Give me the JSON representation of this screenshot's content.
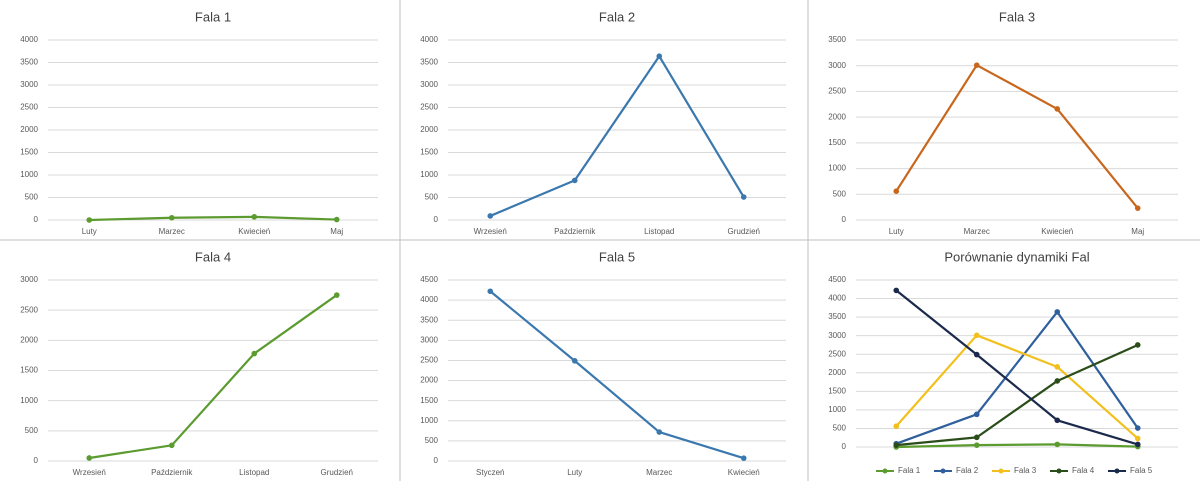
{
  "chart_data": [
    {
      "type": "line",
      "title": "Fala 1",
      "categories": [
        "Luty",
        "Marzec",
        "Kwiecień",
        "Maj"
      ],
      "values": [
        0,
        50,
        70,
        10
      ],
      "color": "#5b9b2f",
      "ylim": [
        0,
        4000
      ],
      "yticks": [
        0,
        500,
        1000,
        1500,
        2000,
        2500,
        3000,
        3500,
        4000
      ],
      "grid": true
    },
    {
      "type": "line",
      "title": "Fala 2",
      "categories": [
        "Wrzesień",
        "Październik",
        "Listopad",
        "Grudzień"
      ],
      "values": [
        90,
        880,
        3640,
        510
      ],
      "color": "#3a78ae",
      "ylim": [
        0,
        4000
      ],
      "yticks": [
        0,
        500,
        1000,
        1500,
        2000,
        2500,
        3000,
        3500,
        4000
      ],
      "grid": true
    },
    {
      "type": "line",
      "title": "Fala 3",
      "categories": [
        "Luty",
        "Marzec",
        "Kwiecień",
        "Maj"
      ],
      "values": [
        560,
        3010,
        2160,
        230
      ],
      "color": "#c8661c",
      "ylim": [
        0,
        3500
      ],
      "yticks": [
        0,
        500,
        1000,
        1500,
        2000,
        2500,
        3000,
        3500
      ],
      "grid": true
    },
    {
      "type": "line",
      "title": "Fala 4",
      "categories": [
        "Wrzesień",
        "Październik",
        "Listopad",
        "Grudzień"
      ],
      "values": [
        50,
        260,
        1780,
        2750
      ],
      "color": "#5b9b2f",
      "ylim": [
        0,
        3000
      ],
      "yticks": [
        0,
        500,
        1000,
        1500,
        2000,
        2500,
        3000
      ],
      "grid": true
    },
    {
      "type": "line",
      "title": "Fala 5",
      "categories": [
        "Styczeń",
        "Luty",
        "Marzec",
        "Kwiecień"
      ],
      "values": [
        4220,
        2490,
        720,
        70
      ],
      "color": "#3a78ae",
      "ylim": [
        0,
        4500
      ],
      "yticks": [
        0,
        500,
        1000,
        1500,
        2000,
        2500,
        3000,
        3500,
        4000,
        4500
      ],
      "grid": true
    },
    {
      "type": "line",
      "title": "Porównanie dynamiki Fal",
      "categories": [
        null,
        null,
        null,
        null
      ],
      "series": [
        {
          "name": "Fala 1",
          "color": "#5b9b2f",
          "values": [
            0,
            50,
            70,
            10
          ]
        },
        {
          "name": "Fala 2",
          "color": "#2f5f9c",
          "values": [
            90,
            880,
            3640,
            510
          ]
        },
        {
          "name": "Fala 3",
          "color": "#f2c01e",
          "values": [
            560,
            3010,
            2160,
            230
          ]
        },
        {
          "name": "Fala 4",
          "color": "#2b4d1a",
          "values": [
            50,
            260,
            1780,
            2750
          ]
        },
        {
          "name": "Fala 5",
          "color": "#1b2a4c",
          "values": [
            4220,
            2490,
            720,
            70
          ]
        }
      ],
      "ylim": [
        0,
        4500
      ],
      "yticks": [
        0,
        500,
        1000,
        1500,
        2000,
        2500,
        3000,
        3500,
        4000,
        4500
      ],
      "grid": true,
      "legend": "bottom"
    }
  ]
}
